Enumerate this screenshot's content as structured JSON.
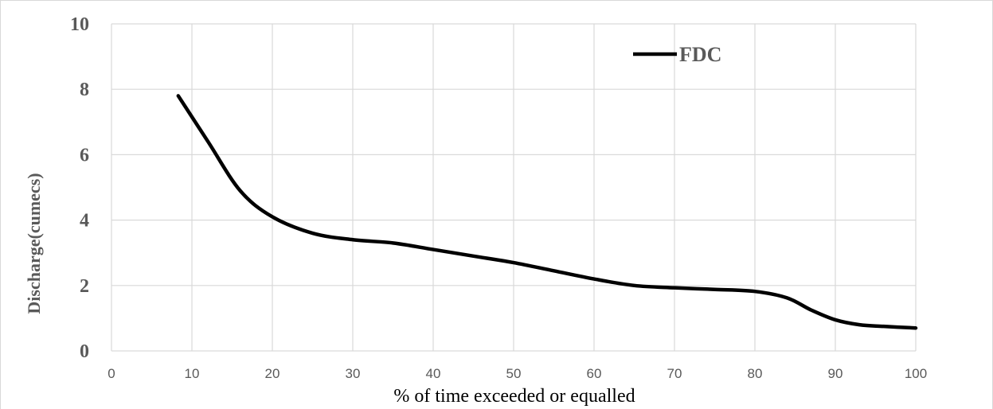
{
  "chart_data": {
    "type": "line",
    "title": "",
    "xlabel": "% of time exceeded or equalled",
    "ylabel": "Discharge(cumecs)",
    "xlim": [
      0,
      100
    ],
    "ylim": [
      0,
      10
    ],
    "x_ticks": [
      "0",
      "10",
      "20",
      "30",
      "40",
      "50",
      "60",
      "70",
      "80",
      "90",
      "100"
    ],
    "y_ticks": [
      "0",
      "2",
      "4",
      "6",
      "8",
      "10"
    ],
    "grid": true,
    "legend_position": "top-right",
    "series": [
      {
        "name": "FDC",
        "color": "#000000",
        "x": [
          8.3,
          12,
          16,
          20,
          25,
          30,
          35,
          40,
          45,
          50,
          55,
          60,
          65,
          70,
          75,
          80,
          84,
          87,
          90,
          93,
          96,
          100
        ],
        "y": [
          7.8,
          6.4,
          4.9,
          4.1,
          3.6,
          3.4,
          3.3,
          3.1,
          2.9,
          2.7,
          2.45,
          2.2,
          2.0,
          1.93,
          1.88,
          1.82,
          1.62,
          1.25,
          0.95,
          0.8,
          0.75,
          0.7
        ]
      }
    ]
  }
}
